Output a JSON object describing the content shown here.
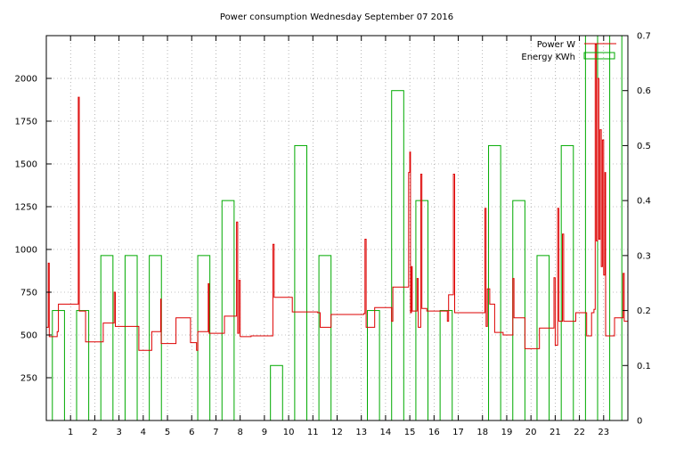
{
  "chart_data": {
    "type": "line",
    "title": "Power consumption Wednesday September 07 2016",
    "x_ticks": [
      "1",
      "2",
      "3",
      "4",
      "5",
      "6",
      "7",
      "8",
      "9",
      "10",
      "11",
      "12",
      "13",
      "14",
      "15",
      "16",
      "17",
      "18",
      "19",
      "20",
      "21",
      "22",
      "23"
    ],
    "xlim": [
      0,
      24
    ],
    "ylim_left": [
      0,
      2250
    ],
    "y_ticks_left": [
      250,
      500,
      750,
      1000,
      1250,
      1500,
      1750,
      2000
    ],
    "ylim_right": [
      0,
      0.7
    ],
    "y_ticks_right": [
      0,
      0.1,
      0.2,
      0.3,
      0.4,
      0.5,
      0.6,
      0.7
    ],
    "grid": true,
    "legend_position": "top-right",
    "colors": {
      "power": "#dd0000",
      "energy": "#00aa00",
      "grid": "#888888"
    },
    "series": [
      {
        "name": "Power W",
        "axis": "left",
        "style": "step-line",
        "points": [
          [
            0,
            545
          ],
          [
            0.08,
            920
          ],
          [
            0.12,
            490
          ],
          [
            0.4,
            490
          ],
          [
            0.45,
            520
          ],
          [
            0.5,
            680
          ],
          [
            1.3,
            680
          ],
          [
            1.32,
            1890
          ],
          [
            1.36,
            640
          ],
          [
            1.6,
            640
          ],
          [
            1.62,
            460
          ],
          [
            2.3,
            460
          ],
          [
            2.35,
            570
          ],
          [
            2.75,
            570
          ],
          [
            2.8,
            750
          ],
          [
            2.85,
            550
          ],
          [
            3.8,
            550
          ],
          [
            3.82,
            410
          ],
          [
            4.3,
            410
          ],
          [
            4.35,
            520
          ],
          [
            4.7,
            520
          ],
          [
            4.72,
            710
          ],
          [
            4.74,
            450
          ],
          [
            5.3,
            450
          ],
          [
            5.35,
            600
          ],
          [
            5.9,
            600
          ],
          [
            5.95,
            455
          ],
          [
            6.15,
            455
          ],
          [
            6.2,
            410
          ],
          [
            6.25,
            520
          ],
          [
            6.65,
            520
          ],
          [
            6.68,
            800
          ],
          [
            6.72,
            510
          ],
          [
            7.3,
            510
          ],
          [
            7.35,
            610
          ],
          [
            7.8,
            610
          ],
          [
            7.85,
            1160
          ],
          [
            7.9,
            510
          ],
          [
            7.95,
            820
          ],
          [
            8.0,
            490
          ],
          [
            8.4,
            490
          ],
          [
            8.45,
            495
          ],
          [
            9.3,
            495
          ],
          [
            9.35,
            1030
          ],
          [
            9.4,
            720
          ],
          [
            10.1,
            720
          ],
          [
            10.15,
            635
          ],
          [
            10.8,
            635
          ],
          [
            11.2,
            630
          ],
          [
            11.3,
            545
          ],
          [
            11.7,
            545
          ],
          [
            11.75,
            620
          ],
          [
            12.6,
            620
          ],
          [
            13.1,
            625
          ],
          [
            13.15,
            1060
          ],
          [
            13.2,
            545
          ],
          [
            13.5,
            545
          ],
          [
            13.55,
            660
          ],
          [
            14.2,
            660
          ],
          [
            14.25,
            580
          ],
          [
            14.3,
            780
          ],
          [
            14.9,
            780
          ],
          [
            14.95,
            1450
          ],
          [
            15.0,
            1570
          ],
          [
            15.03,
            630
          ],
          [
            15.07,
            900
          ],
          [
            15.1,
            640
          ],
          [
            15.3,
            830
          ],
          [
            15.35,
            545
          ],
          [
            15.45,
            1440
          ],
          [
            15.5,
            655
          ],
          [
            15.7,
            640
          ],
          [
            16.5,
            640
          ],
          [
            16.55,
            580
          ],
          [
            16.6,
            735
          ],
          [
            16.8,
            1440
          ],
          [
            16.85,
            630
          ],
          [
            17.7,
            630
          ],
          [
            18.0,
            630
          ],
          [
            18.1,
            1240
          ],
          [
            18.15,
            550
          ],
          [
            18.2,
            770
          ],
          [
            18.3,
            680
          ],
          [
            18.5,
            515
          ],
          [
            18.8,
            515
          ],
          [
            18.85,
            500
          ],
          [
            19.2,
            500
          ],
          [
            19.25,
            830
          ],
          [
            19.3,
            600
          ],
          [
            19.7,
            600
          ],
          [
            19.75,
            420
          ],
          [
            20.3,
            420
          ],
          [
            20.35,
            540
          ],
          [
            20.9,
            540
          ],
          [
            20.95,
            835
          ],
          [
            21.0,
            440
          ],
          [
            21.1,
            1240
          ],
          [
            21.15,
            580
          ],
          [
            21.3,
            1090
          ],
          [
            21.35,
            580
          ],
          [
            21.8,
            580
          ],
          [
            21.85,
            630
          ],
          [
            22.2,
            630
          ],
          [
            22.3,
            495
          ],
          [
            22.45,
            495
          ],
          [
            22.5,
            630
          ],
          [
            22.6,
            650
          ],
          [
            22.65,
            2200
          ],
          [
            22.7,
            1050
          ],
          [
            22.75,
            2000
          ],
          [
            22.8,
            1060
          ],
          [
            22.85,
            1700
          ],
          [
            22.9,
            900
          ],
          [
            22.95,
            1640
          ],
          [
            23.0,
            850
          ],
          [
            23.05,
            1450
          ],
          [
            23.08,
            495
          ],
          [
            23.4,
            495
          ],
          [
            23.45,
            600
          ],
          [
            23.75,
            600
          ],
          [
            23.8,
            860
          ],
          [
            23.85,
            580
          ],
          [
            24.0,
            580
          ]
        ]
      },
      {
        "name": "Energy KWh",
        "axis": "right",
        "style": "hour-boxes",
        "hours": [
          0,
          1,
          2,
          3,
          4,
          5,
          6,
          7,
          8,
          9,
          10,
          11,
          12,
          13,
          14,
          15,
          16,
          17,
          18,
          19,
          20,
          21,
          22,
          23
        ],
        "values": [
          0.2,
          0.2,
          0.3,
          0.3,
          0.3,
          0,
          0.3,
          0.4,
          0,
          0.1,
          0.5,
          0.3,
          0,
          0.2,
          0.6,
          0.4,
          0.2,
          0,
          0.5,
          0.4,
          0.3,
          0.5,
          0.7,
          0.7
        ]
      }
    ]
  }
}
